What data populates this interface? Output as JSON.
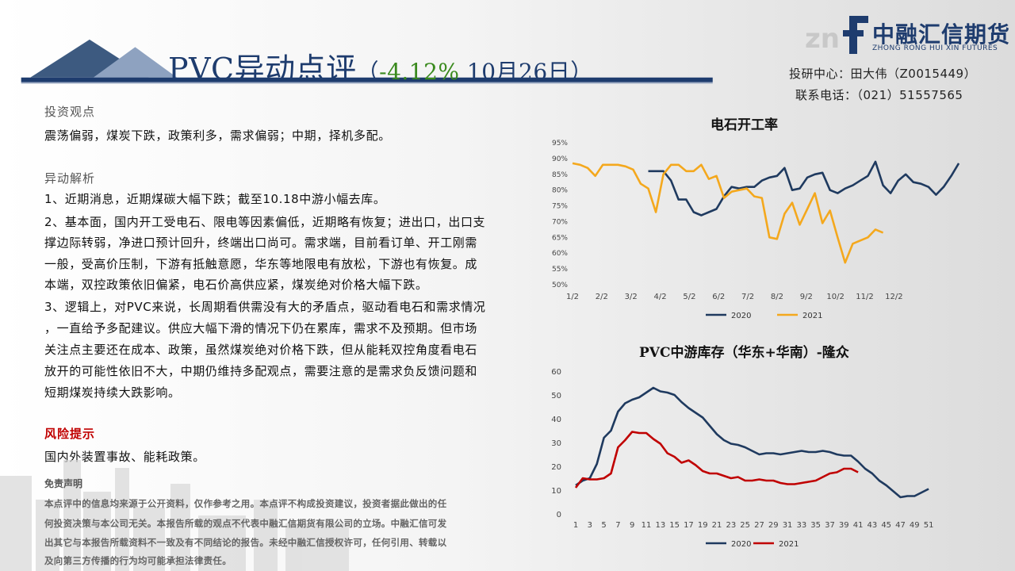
{
  "header": {
    "title_main": "PVC异动点评",
    "title_paren_open": "（",
    "title_change": "-4.12%",
    "title_date": " 10月26日",
    "title_paren_close": "）",
    "researcher": "投研中心：田大伟（Z0015449）",
    "phone": "联系电话：（021）51557565"
  },
  "logo": {
    "cn": "中融汇信期货",
    "en": "ZHONG RONG HUI XIN FUTURES",
    "brand_color": "#1e3c6e"
  },
  "view": {
    "title": "投资观点",
    "text": "震荡偏弱，煤炭下跌，政策利多，需求偏弱；中期，择机多配。"
  },
  "analysis": {
    "title": "异动解析",
    "lines": [
      "1、近期消息，近期煤碳大幅下跌；截至10.18中游小幅去库。",
      "2、基本面，国内开工受电石、限电等因素偏低，近期略有恢复；进出口，出口支",
      "撑边际转弱，净进口预计回升，终端出口尚可。需求端，目前看订单、开工刚需",
      "一般，受高价压制，下游有抵触意愿，华东等地限电有放松，下游也有恢复。成",
      "本端，双控政策依旧偏紧，电石价高供应紧，煤炭绝对价格大幅下跌。",
      "3、逻辑上，对PVC来说，长周期看供需没有大的矛盾点，驱动看电石和需求情况",
      "，一直给予多配建议。供应大幅下滑的情况下仍在累库，需求不及预期。但市场",
      "关注点主要还在成本、政策，虽然煤炭绝对价格下跌，但从能耗双控角度看电石",
      "放开的可能性依旧不大，中期仍维持多配观点，需要注意的是需求负反馈问题和",
      "短期煤炭持续大跌影响。"
    ]
  },
  "risk": {
    "title": "风险提示",
    "text": "国内外装置事故、能耗政策。",
    "color": "#c00000"
  },
  "disclaimer": {
    "title": "免责声明",
    "lines": [
      "本点评中的信息均来源于公开资料，仅作参考之用。本点评不构成投资建议，投资者据此做出的任",
      "何投资决策与本公司无关。本报告所载的观点不代表中融汇信期货有限公司的立场。中融汇信可发",
      "出其它与本报告所载资料不一致及有不同结论的报告。未经中融汇信授权许可，任何引用、转载以",
      "及向第三方传播的行为均可能承担法律责任。"
    ]
  },
  "chart_data": [
    {
      "type": "line",
      "title": "电石开工率",
      "x_tick_labels": [
        "1/2",
        "2/2",
        "3/2",
        "4/2",
        "5/2",
        "6/2",
        "7/2",
        "8/2",
        "9/2",
        "10/2",
        "11/2",
        "12/2"
      ],
      "x_domain_weeks": [
        0,
        49
      ],
      "y_tick_labels": [
        "95%",
        "90%",
        "85%",
        "80%",
        "75%",
        "70%",
        "65%",
        "60%",
        "55%",
        "50%"
      ],
      "ylim": [
        50,
        95
      ],
      "legend_position": "bottom",
      "series": [
        {
          "name": "2020",
          "color": "#1f3a5f",
          "start_week": 10,
          "values": [
            86,
            86,
            86,
            83,
            77,
            77,
            73,
            72,
            73,
            74,
            78,
            81,
            80.5,
            81,
            81,
            83,
            84,
            84.5,
            87,
            80,
            80.5,
            84,
            85,
            85.5,
            80,
            79,
            80.5,
            81.5,
            83,
            84.5,
            89,
            81.5,
            79,
            83,
            85,
            82.5,
            82,
            81,
            78.5,
            81,
            84.5,
            88.5
          ]
        },
        {
          "name": "2021",
          "color": "#f4a81d",
          "start_week": 0,
          "values": [
            88.5,
            88,
            87,
            84.5,
            88,
            88,
            88,
            87.5,
            86.5,
            82,
            80.5,
            73,
            85,
            88,
            88,
            86,
            86,
            88,
            83.5,
            84.5,
            77.5,
            79.5,
            80,
            80.5,
            78,
            77.5,
            65,
            64.5,
            72.5,
            76,
            69,
            74,
            79,
            69.5,
            73.5,
            65,
            57,
            63,
            64,
            65,
            67.5,
            66.5
          ]
        }
      ]
    },
    {
      "type": "line",
      "title": "PVC中游库存（华东+华南）-隆众",
      "x_tick_labels": [
        "1",
        "3",
        "5",
        "7",
        "9",
        "11",
        "13",
        "15",
        "17",
        "19",
        "21",
        "23",
        "25",
        "27",
        "29",
        "31",
        "33",
        "35",
        "37",
        "39",
        "41",
        "43",
        "45",
        "47",
        "49",
        "51"
      ],
      "y_tick_labels": [
        "60",
        "50",
        "40",
        "30",
        "20",
        "10",
        "0"
      ],
      "ylim": [
        0,
        60
      ],
      "legend_position": "bottom",
      "series": [
        {
          "name": "2020",
          "color": "#1f3a5f",
          "values": [
            12,
            14,
            15,
            21,
            32,
            35,
            43,
            46.5,
            48,
            49,
            51,
            53,
            51.5,
            51,
            50,
            47,
            44.5,
            42.5,
            40.5,
            37,
            33.5,
            31,
            29.5,
            29,
            28,
            26.5,
            25,
            25.5,
            25.5,
            25,
            25.5,
            26,
            26.5,
            26,
            26,
            26.5,
            26,
            25,
            24.5,
            24.5,
            22,
            19,
            17,
            14,
            12,
            9.5,
            7,
            7.5,
            7.5,
            9,
            10.5
          ]
        },
        {
          "name": "2021",
          "color": "#c00000",
          "values": [
            11,
            15,
            14.5,
            14.5,
            15,
            17,
            28,
            31,
            34.5,
            34,
            34,
            31.5,
            29.5,
            25.5,
            24,
            21.5,
            22.5,
            20.5,
            18,
            17,
            17,
            16,
            15,
            15.5,
            14,
            14,
            14.5,
            14,
            14,
            13,
            12.5,
            12.5,
            13,
            13.5,
            14,
            15.5,
            17,
            17.5,
            19,
            19,
            17.5
          ]
        }
      ]
    }
  ]
}
